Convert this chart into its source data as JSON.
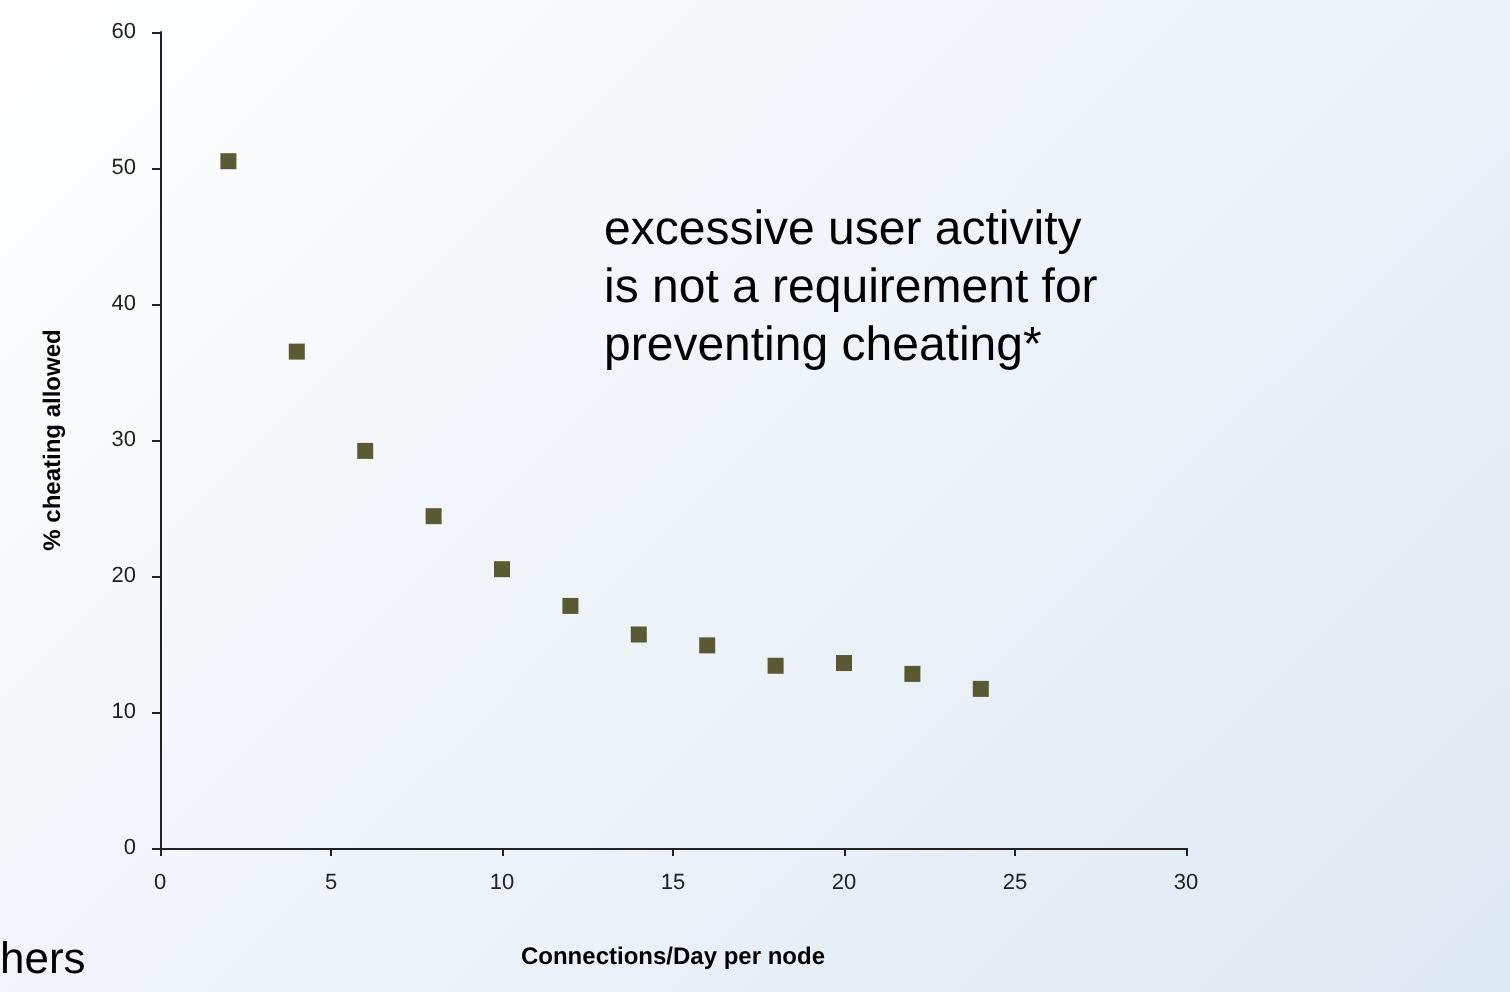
{
  "chart_data": {
    "type": "scatter",
    "xlabel": "Connections/Day per node",
    "ylabel": "% cheating allowed",
    "annotations": [
      "excessive user activity\nis not a requirement for\npreventing cheating*",
      "hers"
    ],
    "x": [
      2,
      4,
      6,
      8,
      10,
      12,
      14,
      16,
      18,
      20,
      22,
      24
    ],
    "series": [
      {
        "color": "#333300",
        "values": [
          50.5,
          36.5,
          29.2,
          24.4,
          20.5,
          17.8,
          15.7,
          14.9,
          13.4,
          13.6,
          12.8,
          11.7
        ]
      }
    ],
    "xlim": [
      0,
      30
    ],
    "xticks": [
      0,
      5,
      10,
      15,
      20,
      25,
      30
    ],
    "ylim": [
      0,
      60
    ],
    "yticks": [
      0,
      10,
      20,
      30,
      40,
      50,
      60
    ],
    "marker": "square"
  }
}
